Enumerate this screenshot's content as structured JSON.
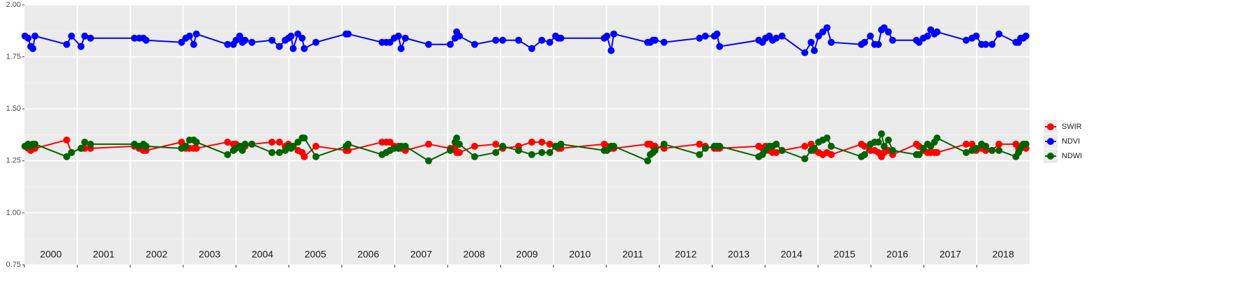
{
  "chart_data": {
    "type": "line",
    "x": [
      2000.01,
      2000.07,
      2000.12,
      2000.16,
      2000.2,
      2000.8,
      2000.89,
      2001.07,
      2001.14,
      2001.25,
      2002.08,
      2002.17,
      2002.25,
      2002.3,
      2002.97,
      2003.05,
      2003.12,
      2003.2,
      2003.25,
      2003.84,
      2003.95,
      2004.0,
      2004.07,
      2004.12,
      2004.17,
      2004.3,
      2004.68,
      2004.82,
      2004.93,
      2004.99,
      2005.04,
      2005.08,
      2005.17,
      2005.25,
      2005.29,
      2005.51,
      2006.08,
      2006.12,
      2006.76,
      2006.84,
      2006.91,
      2006.99,
      2007.07,
      2007.12,
      2007.2,
      2007.64,
      2008.05,
      2008.14,
      2008.17,
      2008.22,
      2008.51,
      2008.91,
      2009.04,
      2009.34,
      2009.59,
      2009.78,
      2009.93,
      2010.04,
      2010.09,
      2010.14,
      2010.96,
      2011.01,
      2011.09,
      2011.14,
      2011.78,
      2011.83,
      2011.88,
      2011.92,
      2012.09,
      2012.76,
      2012.87,
      2013.04,
      2013.09,
      2013.14,
      2013.88,
      2013.95,
      2014.01,
      2014.08,
      2014.14,
      2014.21,
      2014.32,
      2014.75,
      2014.87,
      2014.93,
      2015.01,
      2015.09,
      2015.17,
      2015.25,
      2015.82,
      2015.88,
      2015.99,
      2016.07,
      2016.14,
      2016.2,
      2016.25,
      2016.33,
      2016.41,
      2016.86,
      2016.91,
      2016.99,
      2017.07,
      2017.13,
      2017.2,
      2017.25,
      2017.8,
      2017.91,
      2017.99,
      2018.09,
      2018.17,
      2018.29,
      2018.42,
      2018.74,
      2018.79,
      2018.83,
      2018.88,
      2018.93
    ],
    "series": [
      {
        "name": "SWIR",
        "color": "#ff0000",
        "values": [
          1.32,
          1.31,
          1.3,
          1.31,
          1.31,
          1.35,
          1.29,
          1.31,
          1.31,
          1.31,
          1.32,
          1.31,
          1.3,
          1.3,
          1.34,
          1.31,
          1.31,
          1.31,
          1.31,
          1.34,
          1.33,
          1.33,
          1.32,
          1.32,
          1.32,
          1.33,
          1.34,
          1.34,
          1.32,
          1.33,
          1.32,
          1.32,
          1.3,
          1.29,
          1.27,
          1.32,
          1.3,
          1.3,
          1.34,
          1.34,
          1.34,
          1.32,
          1.32,
          1.31,
          1.3,
          1.33,
          1.31,
          1.31,
          1.29,
          1.29,
          1.32,
          1.33,
          1.31,
          1.32,
          1.34,
          1.34,
          1.33,
          1.32,
          1.31,
          1.31,
          1.33,
          1.32,
          1.31,
          1.31,
          1.33,
          1.33,
          1.32,
          1.32,
          1.31,
          1.33,
          1.32,
          1.31,
          1.31,
          1.31,
          1.32,
          1.31,
          1.32,
          1.3,
          1.29,
          1.29,
          1.3,
          1.32,
          1.33,
          1.3,
          1.29,
          1.28,
          1.29,
          1.28,
          1.33,
          1.32,
          1.3,
          1.3,
          1.29,
          1.27,
          1.29,
          1.3,
          1.28,
          1.33,
          1.32,
          1.3,
          1.29,
          1.29,
          1.29,
          1.29,
          1.33,
          1.33,
          1.3,
          1.31,
          1.3,
          1.3,
          1.33,
          1.33,
          1.31,
          1.32,
          1.32,
          1.31
        ]
      },
      {
        "name": "NDVI",
        "color": "#0000ff",
        "values": [
          1.85,
          1.84,
          1.8,
          1.79,
          1.85,
          1.81,
          1.85,
          1.8,
          1.85,
          1.84,
          1.84,
          1.84,
          1.84,
          1.83,
          1.82,
          1.84,
          1.85,
          1.81,
          1.86,
          1.81,
          1.81,
          1.83,
          1.85,
          1.82,
          1.83,
          1.82,
          1.83,
          1.8,
          1.83,
          1.84,
          1.85,
          1.79,
          1.86,
          1.84,
          1.79,
          1.82,
          1.86,
          1.86,
          1.82,
          1.82,
          1.82,
          1.84,
          1.85,
          1.79,
          1.84,
          1.81,
          1.81,
          1.84,
          1.87,
          1.85,
          1.81,
          1.83,
          1.83,
          1.83,
          1.79,
          1.83,
          1.82,
          1.85,
          1.84,
          1.84,
          1.84,
          1.85,
          1.78,
          1.86,
          1.82,
          1.82,
          1.83,
          1.83,
          1.82,
          1.84,
          1.85,
          1.85,
          1.86,
          1.8,
          1.83,
          1.82,
          1.84,
          1.85,
          1.83,
          1.84,
          1.85,
          1.77,
          1.82,
          1.78,
          1.85,
          1.87,
          1.89,
          1.82,
          1.81,
          1.82,
          1.85,
          1.81,
          1.81,
          1.88,
          1.89,
          1.87,
          1.83,
          1.83,
          1.82,
          1.84,
          1.85,
          1.88,
          1.86,
          1.87,
          1.83,
          1.84,
          1.85,
          1.81,
          1.81,
          1.81,
          1.86,
          1.82,
          1.82,
          1.84,
          1.84,
          1.85
        ]
      },
      {
        "name": "NDWI",
        "color": "#006400",
        "values": [
          1.32,
          1.33,
          1.32,
          1.33,
          1.33,
          1.27,
          1.29,
          1.31,
          1.34,
          1.33,
          1.33,
          1.32,
          1.33,
          1.32,
          1.31,
          1.32,
          1.35,
          1.35,
          1.34,
          1.28,
          1.3,
          1.31,
          1.32,
          1.3,
          1.33,
          1.33,
          1.29,
          1.29,
          1.3,
          1.32,
          1.31,
          1.32,
          1.34,
          1.36,
          1.36,
          1.27,
          1.32,
          1.33,
          1.28,
          1.29,
          1.3,
          1.31,
          1.31,
          1.32,
          1.32,
          1.25,
          1.3,
          1.34,
          1.36,
          1.33,
          1.27,
          1.29,
          1.32,
          1.3,
          1.28,
          1.29,
          1.29,
          1.32,
          1.32,
          1.33,
          1.3,
          1.3,
          1.32,
          1.32,
          1.25,
          1.28,
          1.29,
          1.3,
          1.33,
          1.28,
          1.31,
          1.32,
          1.32,
          1.32,
          1.27,
          1.28,
          1.3,
          1.32,
          1.32,
          1.33,
          1.3,
          1.26,
          1.3,
          1.31,
          1.34,
          1.35,
          1.36,
          1.32,
          1.27,
          1.28,
          1.33,
          1.34,
          1.34,
          1.38,
          1.32,
          1.35,
          1.3,
          1.28,
          1.28,
          1.31,
          1.33,
          1.32,
          1.34,
          1.36,
          1.29,
          1.3,
          1.31,
          1.33,
          1.32,
          1.3,
          1.3,
          1.27,
          1.29,
          1.31,
          1.33,
          1.33
        ]
      }
    ],
    "xlim": [
      2000,
      2019
    ],
    "xticks": [
      2000,
      2001,
      2002,
      2003,
      2004,
      2005,
      2006,
      2007,
      2008,
      2009,
      2010,
      2011,
      2012,
      2013,
      2014,
      2015,
      2016,
      2017,
      2018
    ],
    "ylim": [
      0.75,
      2.0
    ],
    "yticks": [
      {
        "value": 0.75,
        "label": "0.75"
      },
      {
        "value": 1,
        "label": "1.00"
      },
      {
        "value": 1.25,
        "label": "1.25"
      },
      {
        "value": 1.5,
        "label": "1.50"
      },
      {
        "value": 1.75,
        "label": "1.75"
      },
      {
        "value": 2,
        "label": "2.00"
      }
    ],
    "grid": true,
    "legend": "right"
  }
}
